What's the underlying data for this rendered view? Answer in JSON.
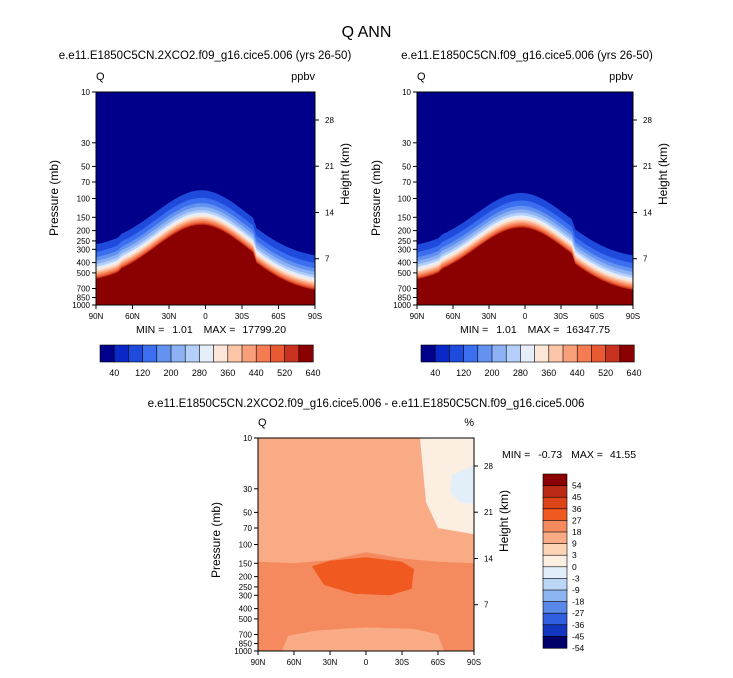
{
  "main_title": "Q ANN",
  "panels": [
    {
      "title": "e.e11.E1850C5CN.2XCO2.f09_g16.cice5.006 (yrs 26-50)",
      "var": "Q",
      "units": "ppbv",
      "ylabel": "Pressure (mb)",
      "ylabel_right": "Height (km)",
      "min_label": "MIN =",
      "min": "1.01",
      "max_label": "MAX =",
      "max": "17799.20"
    },
    {
      "title": "e.e11.E1850C5CN.f09_g16.cice5.006 (yrs 26-50)",
      "var": "Q",
      "units": "ppbv",
      "ylabel": "Pressure (mb)",
      "ylabel_right": "Height (km)",
      "min_label": "MIN =",
      "min": "1.01",
      "max_label": "MAX =",
      "max": "16347.75"
    },
    {
      "title": "e.e11.E1850C5CN.2XCO2.f09_g16.cice5.006 - e.e11.E1850C5CN.f09_g16.cice5.006",
      "var": "Q",
      "units": "%",
      "ylabel": "Pressure (mb)",
      "ylabel_right": "Height (km)",
      "min_label": "MIN =",
      "min": "-0.73",
      "max_label": "MAX =",
      "max": "41.55"
    }
  ],
  "chart_data": [
    {
      "type": "heatmap",
      "title": "e.e11.E1850C5CN.2XCO2.f09_g16.cice5.006 (yrs 26-50)",
      "xlabel": "",
      "ylabel": "Pressure (mb)",
      "ylabel_right": "Height (km)",
      "x_ticks": [
        "90N",
        "60N",
        "30N",
        "0",
        "30S",
        "60S",
        "90S"
      ],
      "y_ticks": [
        "10",
        "30",
        "50",
        "70",
        "100",
        "150",
        "200",
        "250",
        "300",
        "400",
        "500",
        "700",
        "850",
        "1000"
      ],
      "y_right_ticks": [
        "28",
        "21",
        "14",
        "7"
      ],
      "pressure_range_mb": [
        1000,
        10
      ],
      "colorbar_ticks": [
        "40",
        "120",
        "200",
        "280",
        "360",
        "440",
        "520",
        "640"
      ],
      "min": 1.01,
      "max": 17799.2,
      "units": "ppbv"
    },
    {
      "type": "heatmap",
      "title": "e.e11.E1850C5CN.f09_g16.cice5.006 (yrs 26-50)",
      "xlabel": "",
      "ylabel": "Pressure (mb)",
      "ylabel_right": "Height (km)",
      "x_ticks": [
        "90N",
        "60N",
        "30N",
        "0",
        "30S",
        "60S",
        "90S"
      ],
      "y_ticks": [
        "10",
        "30",
        "50",
        "70",
        "100",
        "150",
        "200",
        "250",
        "300",
        "400",
        "500",
        "700",
        "850",
        "1000"
      ],
      "y_right_ticks": [
        "28",
        "21",
        "14",
        "7"
      ],
      "pressure_range_mb": [
        1000,
        10
      ],
      "colorbar_ticks": [
        "40",
        "120",
        "200",
        "280",
        "360",
        "440",
        "520",
        "640"
      ],
      "min": 1.01,
      "max": 16347.75,
      "units": "ppbv"
    },
    {
      "type": "heatmap",
      "title": "e.e11.E1850C5CN.2XCO2.f09_g16.cice5.006 - e.e11.E1850C5CN.f09_g16.cice5.006",
      "xlabel": "",
      "ylabel": "Pressure (mb)",
      "ylabel_right": "Height (km)",
      "x_ticks": [
        "90N",
        "60N",
        "30N",
        "0",
        "30S",
        "60S",
        "90S"
      ],
      "y_ticks": [
        "10",
        "30",
        "50",
        "70",
        "100",
        "150",
        "200",
        "250",
        "300",
        "400",
        "500",
        "700",
        "850",
        "1000"
      ],
      "y_right_ticks": [
        "28",
        "21",
        "14",
        "7"
      ],
      "pressure_range_mb": [
        1000,
        10
      ],
      "colorbar_ticks": [
        "54",
        "45",
        "36",
        "27",
        "18",
        "9",
        "3",
        "0",
        "-3",
        "-9",
        "-18",
        "-27",
        "-36",
        "-45",
        "-54"
      ],
      "min": -0.73,
      "max": 41.55,
      "units": "%"
    }
  ],
  "colors": {
    "seq": [
      "#00008a",
      "#0a28c8",
      "#1e4bdc",
      "#3c6ef0",
      "#6492f0",
      "#8cb2f5",
      "#b4d0fa",
      "#e6eefa",
      "#fde6d8",
      "#fcc5a8",
      "#f9a07a",
      "#f57b52",
      "#ea5a32",
      "#c8321e",
      "#8b0000"
    ],
    "div": [
      "#8b0000",
      "#bb2a14",
      "#dd4418",
      "#f05a20",
      "#f58a5e",
      "#f9ab86",
      "#fcd3b4",
      "#fdeee2",
      "#e2eefa",
      "#bcd6f5",
      "#8cb4f0",
      "#5a88e8",
      "#2f5ee0",
      "#1236c0",
      "#00006a"
    ]
  }
}
